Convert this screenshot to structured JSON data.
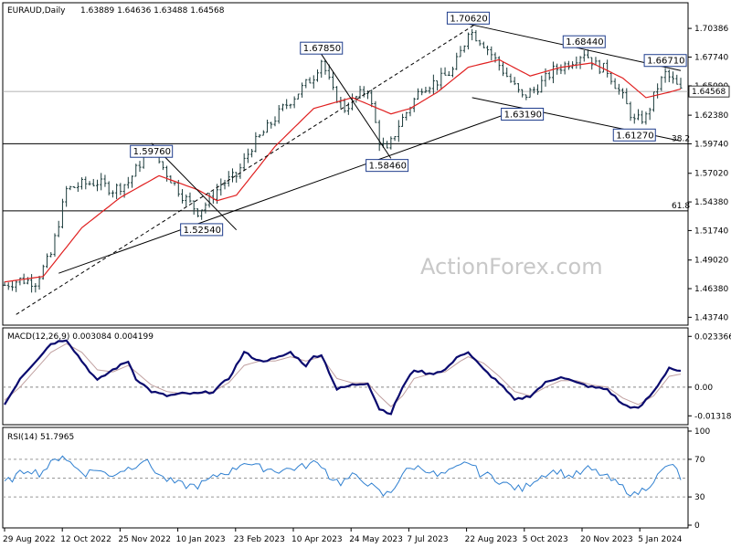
{
  "chart_data": [
    {
      "type": "candlestick",
      "title": "EURAUD,Daily",
      "ohlc_readout": "1.63889 1.64636 1.63488 1.64568",
      "ylim": [
        1.4335,
        1.725
      ],
      "yticks": [
        "1.70386",
        "1.67740",
        "1.65090",
        "1.62380",
        "1.59740",
        "1.57020",
        "1.54380",
        "1.51740",
        "1.49020",
        "1.46380",
        "1.43740"
      ],
      "ytick_values": [
        1.70386,
        1.6774,
        1.6509,
        1.6238,
        1.5974,
        1.5702,
        1.5438,
        1.5174,
        1.4902,
        1.4638,
        1.4374
      ],
      "current_price_label": "1.64568",
      "current_price": 1.64568,
      "xticks": [
        "29 Aug 2022",
        "12 Oct 2022",
        "25 Nov 2022",
        "10 Jan 2023",
        "23 Feb 2023",
        "10 Apr 2023",
        "24 May 2023",
        "7 Jul 2023",
        "22 Aug 2023",
        "5 Oct 2023",
        "20 Nov 2023",
        "5 Jan 2024"
      ],
      "horizontal_lines": [
        {
          "label": "38.2",
          "value": 1.5975
        },
        {
          "label": "61.8",
          "value": 1.5355
        },
        {
          "label": "",
          "value": 1.6457
        }
      ],
      "price_labels": [
        {
          "text": "1.70620",
          "value": 1.7062,
          "date_index": 120
        },
        {
          "text": "1.67850",
          "value": 1.6785,
          "date_index": 82
        },
        {
          "text": "1.68440",
          "value": 1.6844,
          "date_index": 150
        },
        {
          "text": "1.66710",
          "value": 1.6671,
          "date_index": 171
        },
        {
          "text": "1.59760",
          "value": 1.5976,
          "date_index": 38
        },
        {
          "text": "1.63190",
          "value": 1.6319,
          "date_index": 134
        },
        {
          "text": "1.61270",
          "value": 1.6127,
          "date_index": 163
        },
        {
          "text": "1.58460",
          "value": 1.5846,
          "date_index": 99
        },
        {
          "text": "1.52540",
          "value": 1.5254,
          "date_index": 51
        }
      ],
      "close_series_keypoints": [
        [
          0,
          1.467
        ],
        [
          4,
          1.472
        ],
        [
          8,
          1.47
        ],
        [
          12,
          1.495
        ],
        [
          16,
          1.555
        ],
        [
          20,
          1.56
        ],
        [
          24,
          1.562
        ],
        [
          28,
          1.555
        ],
        [
          32,
          1.562
        ],
        [
          36,
          1.585
        ],
        [
          38,
          1.592
        ],
        [
          42,
          1.57
        ],
        [
          46,
          1.55
        ],
        [
          50,
          1.535
        ],
        [
          53,
          1.545
        ],
        [
          56,
          1.56
        ],
        [
          60,
          1.568
        ],
        [
          64,
          1.595
        ],
        [
          68,
          1.612
        ],
        [
          72,
          1.63
        ],
        [
          76,
          1.645
        ],
        [
          80,
          1.66
        ],
        [
          82,
          1.675
        ],
        [
          85,
          1.645
        ],
        [
          88,
          1.63
        ],
        [
          91,
          1.64
        ],
        [
          94,
          1.648
        ],
        [
          97,
          1.6
        ],
        [
          99,
          1.59
        ],
        [
          102,
          1.615
        ],
        [
          105,
          1.632
        ],
        [
          108,
          1.65
        ],
        [
          112,
          1.655
        ],
        [
          116,
          1.665
        ],
        [
          119,
          1.69
        ],
        [
          120,
          1.703
        ],
        [
          124,
          1.69
        ],
        [
          128,
          1.67
        ],
        [
          132,
          1.65
        ],
        [
          134,
          1.64
        ],
        [
          138,
          1.65
        ],
        [
          142,
          1.665
        ],
        [
          146,
          1.672
        ],
        [
          150,
          1.682
        ],
        [
          153,
          1.67
        ],
        [
          156,
          1.665
        ],
        [
          160,
          1.64
        ],
        [
          163,
          1.618
        ],
        [
          166,
          1.622
        ],
        [
          169,
          1.65
        ],
        [
          171,
          1.662
        ],
        [
          173,
          1.655
        ],
        [
          175,
          1.646
        ]
      ],
      "ma_series_keypoints": [
        [
          0,
          1.47
        ],
        [
          10,
          1.475
        ],
        [
          20,
          1.52
        ],
        [
          30,
          1.548
        ],
        [
          40,
          1.568
        ],
        [
          50,
          1.555
        ],
        [
          55,
          1.545
        ],
        [
          60,
          1.55
        ],
        [
          70,
          1.595
        ],
        [
          80,
          1.63
        ],
        [
          90,
          1.64
        ],
        [
          100,
          1.625
        ],
        [
          105,
          1.63
        ],
        [
          112,
          1.645
        ],
        [
          120,
          1.668
        ],
        [
          128,
          1.675
        ],
        [
          136,
          1.66
        ],
        [
          144,
          1.668
        ],
        [
          152,
          1.672
        ],
        [
          160,
          1.658
        ],
        [
          166,
          1.64
        ],
        [
          172,
          1.645
        ],
        [
          175,
          1.648
        ]
      ],
      "trendlines": [
        {
          "from": [
            14,
            1.478
          ],
          "to": [
            130,
            1.625
          ]
        },
        {
          "from": [
            3,
            1.44
          ],
          "to": [
            122,
            1.708
          ]
        },
        {
          "from": [
            82,
            1.68
          ],
          "to": [
            100,
            1.584
          ]
        },
        {
          "from": [
            38,
            1.598
          ],
          "to": [
            60,
            1.518
          ]
        },
        {
          "from": [
            120,
            1.708
          ],
          "to": [
            175,
            1.665
          ]
        },
        {
          "from": [
            121,
            1.64
          ],
          "to": [
            175,
            1.6
          ]
        }
      ]
    },
    {
      "type": "line",
      "title": "MACD(12,26,9) 0.003084 0.004199",
      "ylim": [
        -0.016,
        0.026
      ],
      "yticks": [
        "0.023366",
        "0.00",
        "-0.013186"
      ],
      "ytick_values": [
        0.023366,
        0.0,
        -0.013186
      ],
      "series": [
        {
          "name": "",
          "values": [
            [
              0,
              -0.008
            ],
            [
              4,
              0.004
            ],
            [
              8,
              0.012
            ],
            [
              12,
              0.02
            ],
            [
              16,
              0.022
            ],
            [
              20,
              0.012
            ],
            [
              24,
              0.003
            ],
            [
              28,
              0.008
            ],
            [
              32,
              0.012
            ],
            [
              34,
              0.004
            ],
            [
              38,
              -0.002
            ],
            [
              42,
              -0.004
            ],
            [
              46,
              -0.003
            ],
            [
              50,
              -0.003
            ],
            [
              54,
              -0.002
            ],
            [
              58,
              0.004
            ],
            [
              62,
              0.016
            ],
            [
              66,
              0.012
            ],
            [
              70,
              0.013
            ],
            [
              74,
              0.016
            ],
            [
              78,
              0.01
            ],
            [
              80,
              0.014
            ],
            [
              82,
              0.015
            ],
            [
              86,
              -0.001
            ],
            [
              90,
              0.001
            ],
            [
              94,
              0.002
            ],
            [
              97,
              -0.01
            ],
            [
              100,
              -0.012
            ],
            [
              103,
              0.0
            ],
            [
              106,
              0.008
            ],
            [
              110,
              0.006
            ],
            [
              114,
              0.008
            ],
            [
              118,
              0.015
            ],
            [
              120,
              0.016
            ],
            [
              124,
              0.008
            ],
            [
              128,
              0.002
            ],
            [
              132,
              -0.006
            ],
            [
              136,
              -0.004
            ],
            [
              140,
              0.002
            ],
            [
              144,
              0.005
            ],
            [
              148,
              0.002
            ],
            [
              152,
              0.0
            ],
            [
              156,
              -0.001
            ],
            [
              160,
              -0.008
            ],
            [
              164,
              -0.01
            ],
            [
              168,
              -0.002
            ],
            [
              172,
              0.009
            ],
            [
              175,
              0.007
            ]
          ]
        },
        {
          "name": "",
          "values": [
            [
              0,
              -0.006
            ],
            [
              4,
              0.0
            ],
            [
              8,
              0.008
            ],
            [
              12,
              0.016
            ],
            [
              16,
              0.02
            ],
            [
              20,
              0.016
            ],
            [
              24,
              0.008
            ],
            [
              28,
              0.007
            ],
            [
              32,
              0.01
            ],
            [
              34,
              0.007
            ],
            [
              38,
              0.001
            ],
            [
              42,
              -0.002
            ],
            [
              46,
              -0.003
            ],
            [
              50,
              -0.003
            ],
            [
              54,
              -0.002
            ],
            [
              58,
              0.002
            ],
            [
              62,
              0.01
            ],
            [
              66,
              0.012
            ],
            [
              70,
              0.012
            ],
            [
              74,
              0.014
            ],
            [
              78,
              0.012
            ],
            [
              80,
              0.013
            ],
            [
              82,
              0.014
            ],
            [
              86,
              0.004
            ],
            [
              90,
              0.002
            ],
            [
              94,
              0.002
            ],
            [
              97,
              -0.004
            ],
            [
              100,
              -0.009
            ],
            [
              103,
              -0.004
            ],
            [
              106,
              0.004
            ],
            [
              110,
              0.006
            ],
            [
              114,
              0.007
            ],
            [
              118,
              0.012
            ],
            [
              120,
              0.014
            ],
            [
              124,
              0.011
            ],
            [
              128,
              0.005
            ],
            [
              132,
              -0.002
            ],
            [
              136,
              -0.004
            ],
            [
              140,
              0.0
            ],
            [
              144,
              0.003
            ],
            [
              148,
              0.003
            ],
            [
              152,
              0.001
            ],
            [
              156,
              0.0
            ],
            [
              160,
              -0.005
            ],
            [
              164,
              -0.008
            ],
            [
              168,
              -0.004
            ],
            [
              172,
              0.005
            ],
            [
              175,
              0.006
            ]
          ]
        }
      ],
      "zero_line": 0.0
    },
    {
      "type": "line",
      "title": "RSI(14) 51.7965",
      "ylim": [
        0,
        100
      ],
      "yticks": [
        "100",
        "70",
        "30",
        "0"
      ],
      "ytick_values": [
        100,
        70,
        30,
        0
      ],
      "reference_lines": [
        70,
        50,
        30
      ],
      "series": [
        {
          "name": "",
          "values": [
            [
              0,
              45
            ],
            [
              3,
              52
            ],
            [
              6,
              60
            ],
            [
              9,
              55
            ],
            [
              12,
              65
            ],
            [
              15,
              75
            ],
            [
              18,
              62
            ],
            [
              21,
              55
            ],
            [
              24,
              60
            ],
            [
              27,
              52
            ],
            [
              30,
              58
            ],
            [
              33,
              62
            ],
            [
              36,
              70
            ],
            [
              38,
              62
            ],
            [
              41,
              50
            ],
            [
              44,
              45
            ],
            [
              47,
              42
            ],
            [
              50,
              42
            ],
            [
              53,
              48
            ],
            [
              56,
              55
            ],
            [
              59,
              58
            ],
            [
              62,
              68
            ],
            [
              65,
              62
            ],
            [
              68,
              60
            ],
            [
              71,
              58
            ],
            [
              74,
              60
            ],
            [
              77,
              62
            ],
            [
              80,
              66
            ],
            [
              82,
              65
            ],
            [
              84,
              52
            ],
            [
              87,
              45
            ],
            [
              90,
              52
            ],
            [
              93,
              48
            ],
            [
              96,
              38
            ],
            [
              98,
              32
            ],
            [
              100,
              35
            ],
            [
              103,
              55
            ],
            [
              106,
              62
            ],
            [
              109,
              60
            ],
            [
              112,
              52
            ],
            [
              115,
              56
            ],
            [
              118,
              62
            ],
            [
              120,
              68
            ],
            [
              123,
              55
            ],
            [
              126,
              52
            ],
            [
              129,
              45
            ],
            [
              132,
              40
            ],
            [
              134,
              38
            ],
            [
              137,
              48
            ],
            [
              140,
              55
            ],
            [
              143,
              58
            ],
            [
              146,
              52
            ],
            [
              149,
              55
            ],
            [
              151,
              60
            ],
            [
              154,
              55
            ],
            [
              157,
              48
            ],
            [
              160,
              40
            ],
            [
              163,
              32
            ],
            [
              166,
              40
            ],
            [
              169,
              52
            ],
            [
              172,
              65
            ],
            [
              174,
              58
            ],
            [
              175,
              50
            ]
          ]
        }
      ]
    }
  ],
  "watermark": "ActionForex.com"
}
